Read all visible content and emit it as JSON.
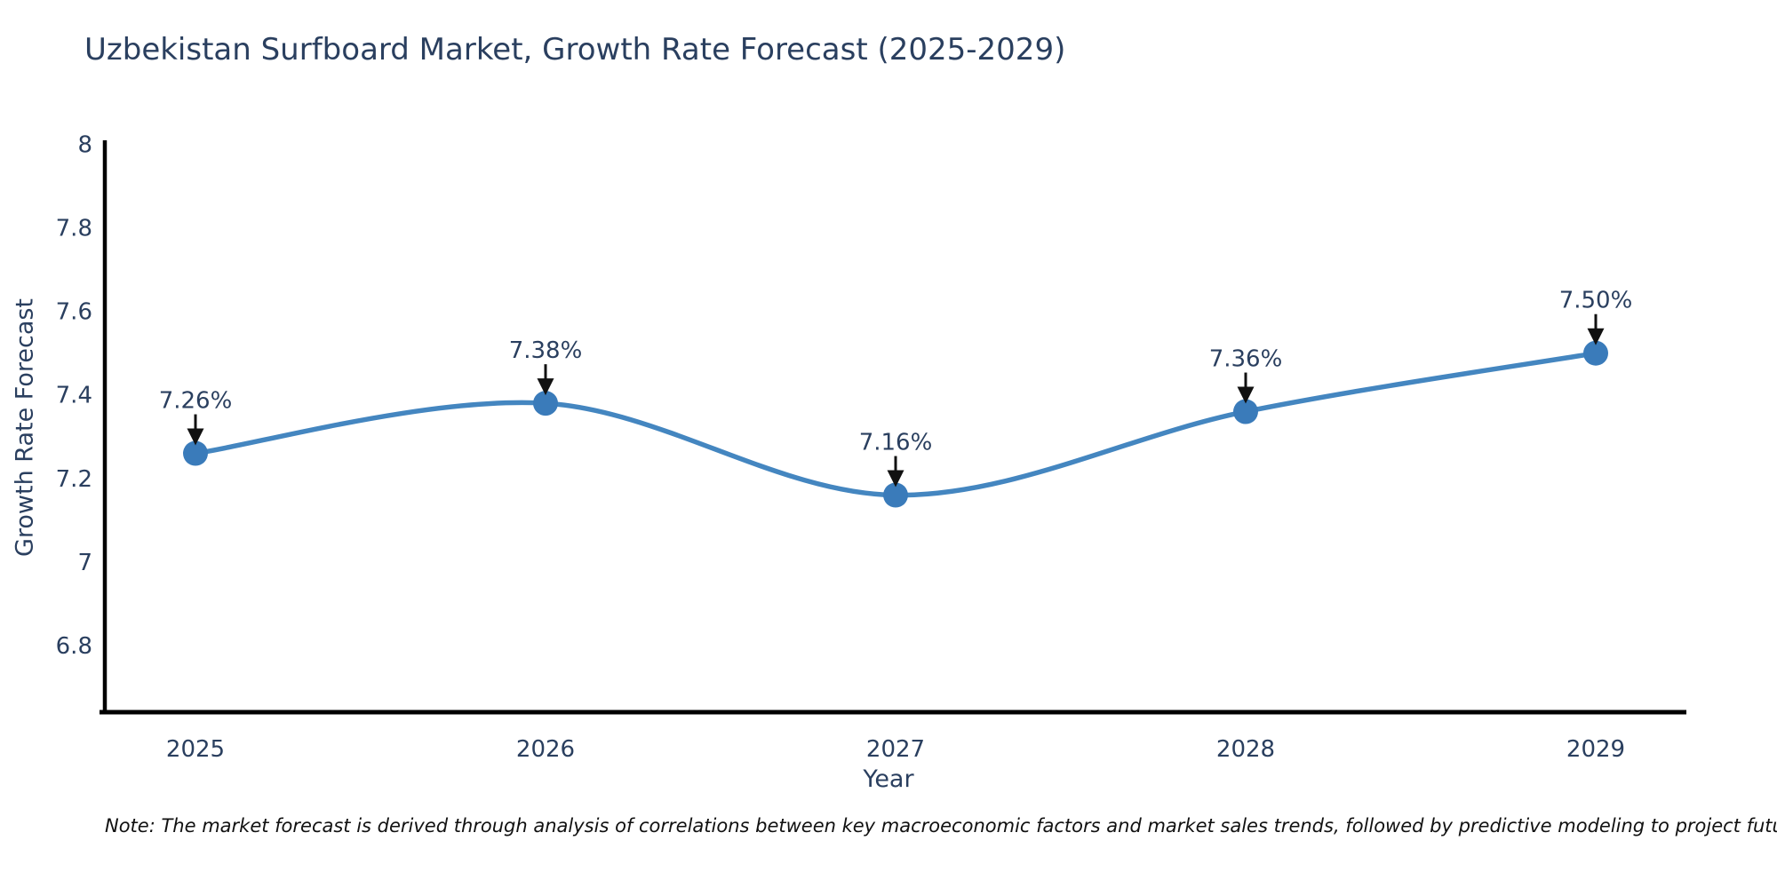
{
  "page": {
    "background": "#ffffff"
  },
  "note": "Note: The market forecast is derived through analysis of correlations between key macroeconomic factors and market sales trends, followed by predictive modeling to project future sales",
  "chart_data": {
    "type": "line",
    "title": "Uzbekistan Surfboard Market, Growth Rate Forecast (2025-2029)",
    "xlabel": "Year",
    "ylabel": "Growth Rate Forecast",
    "categories": [
      "2025",
      "2026",
      "2027",
      "2028",
      "2029"
    ],
    "values": [
      7.26,
      7.38,
      7.16,
      7.36,
      7.5
    ],
    "point_labels": [
      "7.26%",
      "7.38%",
      "7.16%",
      "7.36%",
      "7.50%"
    ],
    "ytick_labels": [
      "6.8",
      "7",
      "7.2",
      "7.4",
      "7.6",
      "7.8",
      "8"
    ],
    "yticks": [
      6.8,
      7.0,
      7.2,
      7.4,
      7.6,
      7.8,
      8.0
    ],
    "ylim": [
      6.64,
      8.01
    ],
    "line_shape": "spline",
    "grid": false,
    "legend": "none",
    "annotations_have_arrows": true,
    "colors": {
      "line": "#4486c0",
      "marker": "#3a7bba",
      "axis": "#000000",
      "text": "#2a3f5f",
      "annotation_text": "#2a3f5f",
      "annotation_arrow": "#111111"
    }
  }
}
